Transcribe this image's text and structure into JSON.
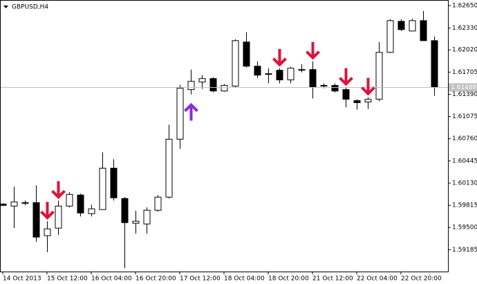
{
  "chart_data": {
    "type": "candlestick",
    "title": "GBPUSD,H4",
    "categories": [
      "14 Oct 2013",
      null,
      null,
      null,
      "15 Oct 12:00",
      null,
      null,
      null,
      "16 Oct 04:00",
      null,
      null,
      null,
      "16 Oct 20:00",
      null,
      null,
      null,
      "17 Oct 12:00",
      null,
      null,
      null,
      "18 Oct 04:00",
      null,
      null,
      null,
      "18 Oct 20:00",
      null,
      null,
      null,
      "21 Oct 12:00",
      null,
      null,
      null,
      "22 Oct 04:00",
      null,
      null,
      null,
      "22 Oct 20:00",
      null,
      null,
      null
    ],
    "open": [
      1.59833,
      1.59804,
      1.59853,
      1.59853,
      1.59384,
      1.59491,
      1.59804,
      1.59961,
      1.59697,
      1.59755,
      1.60342,
      1.59912,
      1.5956,
      1.5955,
      1.59745,
      1.59931,
      1.60753,
      1.61457,
      1.61564,
      1.61613,
      1.61437,
      1.61506,
      1.62132,
      1.61789,
      1.61682,
      1.61731,
      1.61594,
      1.61741,
      1.61741,
      1.61516,
      1.61516,
      1.61457,
      1.613,
      1.61281,
      1.6132,
      1.61985,
      1.62425,
      1.62288,
      1.62435,
      1.62151
    ],
    "high": [
      1.59843,
      1.60078,
      1.59882,
      1.60098,
      1.59589,
      1.59882,
      1.6,
      1.5998,
      1.59824,
      1.60567,
      1.60469,
      1.59931,
      1.59736,
      1.59785,
      1.59961,
      1.60958,
      1.61525,
      1.61741,
      1.61662,
      1.61633,
      1.61535,
      1.62171,
      1.62269,
      1.61858,
      1.6176,
      1.6176,
      1.6178,
      1.61819,
      1.61858,
      1.61545,
      1.61545,
      1.61486,
      1.6132,
      1.61349,
      1.62132,
      1.62454,
      1.62454,
      1.62464,
      1.62572,
      1.6221
    ],
    "low": [
      1.59804,
      1.59491,
      1.59814,
      1.59296,
      1.59149,
      1.59393,
      1.59785,
      1.59657,
      1.59657,
      1.59755,
      1.59882,
      1.58924,
      1.59413,
      1.59413,
      1.59726,
      1.59912,
      1.60616,
      1.61388,
      1.61467,
      1.61418,
      1.61428,
      1.61486,
      1.6177,
      1.61623,
      1.61545,
      1.61545,
      1.61545,
      1.61701,
      1.6133,
      1.61476,
      1.61418,
      1.61203,
      1.61173,
      1.61183,
      1.61291,
      1.61975,
      1.62288,
      1.62288,
      1.62151,
      1.61369
    ],
    "close": [
      1.59814,
      1.59863,
      1.59853,
      1.59364,
      1.59481,
      1.59804,
      1.5997,
      1.59706,
      1.59765,
      1.60342,
      1.59921,
      1.59569,
      1.59589,
      1.59745,
      1.59931,
      1.60753,
      1.61476,
      1.61574,
      1.61613,
      1.61437,
      1.61516,
      1.62151,
      1.61789,
      1.61662,
      1.61682,
      1.61594,
      1.6176,
      1.61741,
      1.61496,
      1.61516,
      1.61437,
      1.6132,
      1.61271,
      1.6132,
      1.61985,
      1.62435,
      1.62308,
      1.62435,
      1.62151,
      1.61496
    ],
    "up_color": "#ffffff",
    "down_color": "#000000",
    "down_arrows": [
      4,
      5,
      25,
      28,
      31,
      33
    ],
    "down_arrow_color": "#dc143c",
    "up_arrows": [
      17
    ],
    "up_arrow_color": "#8a2be2",
    "current_price": 1.61488,
    "ylim": [
      1.58875,
      1.62718
    ],
    "yticks": [
      {
        "value": 1.6265,
        "label": "1.62650"
      },
      {
        "value": 1.6233,
        "label": "1.62330"
      },
      {
        "value": 1.6202,
        "label": "1.62020"
      },
      {
        "value": 1.61705,
        "label": "1.61705"
      },
      {
        "value": 1.6139,
        "label": "1.61390"
      },
      {
        "value": 1.61075,
        "label": "1.61075"
      },
      {
        "value": 1.6076,
        "label": "1.60760"
      },
      {
        "value": 1.60445,
        "label": "1.60445"
      },
      {
        "value": 1.6013,
        "label": "1.60130"
      },
      {
        "value": 1.59815,
        "label": "1.59815"
      },
      {
        "value": 1.595,
        "label": "1.59500"
      },
      {
        "value": 1.59185,
        "label": "1.59185"
      }
    ]
  }
}
